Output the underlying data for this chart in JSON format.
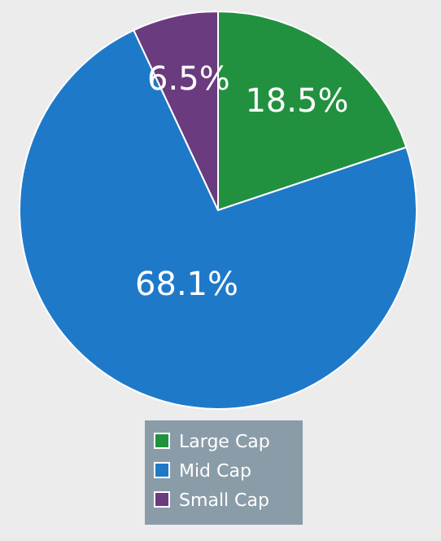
{
  "chart_data": {
    "type": "pie",
    "categories": [
      "Large Cap",
      "Mid Cap",
      "Small Cap"
    ],
    "values": [
      18.5,
      68.1,
      6.5
    ],
    "colors": [
      "#22913f",
      "#1f79c9",
      "#6a3b7e"
    ],
    "value_labels": [
      "18.5%",
      "68.1%",
      "6.5%"
    ],
    "legend": "bottom"
  }
}
